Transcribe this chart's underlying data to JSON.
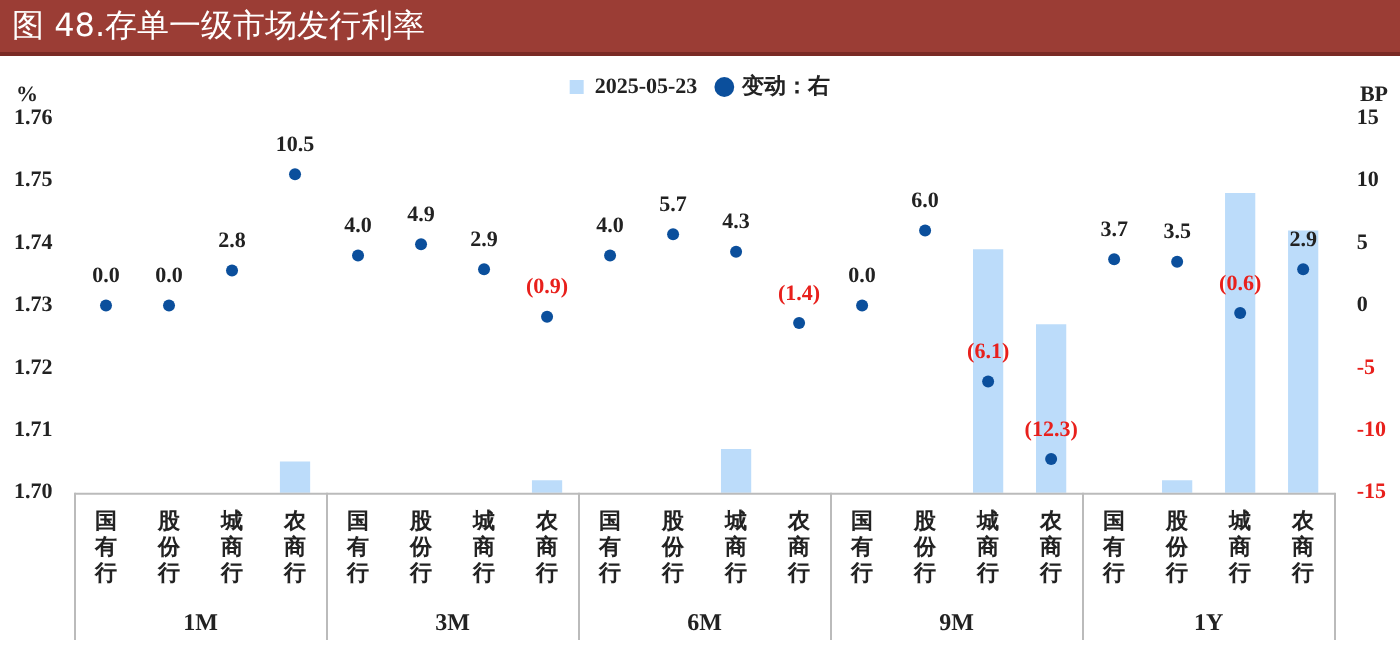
{
  "chart_data": {
    "type": "bar",
    "title": "图 48.存单一级市场发行利率",
    "categories": [
      "国有行",
      "股份行",
      "城商行",
      "农商行",
      "国有行",
      "股份行",
      "城商行",
      "农商行",
      "国有行",
      "股份行",
      "城商行",
      "农商行",
      "国有行",
      "股份行",
      "城商行",
      "农商行",
      "国有行",
      "股份行",
      "城商行",
      "农商行"
    ],
    "series": [
      {
        "name": "2025-05-23",
        "color": "#bcdcfa",
        "values": [
          null,
          null,
          null,
          1.705,
          null,
          null,
          null,
          1.702,
          null,
          null,
          1.707,
          null,
          null,
          null,
          1.739,
          1.727,
          null,
          1.702,
          1.748,
          1.742
        ]
      },
      {
        "name": "变动：右",
        "type": "scatter",
        "axis": "y2",
        "color": "#0b4f9c",
        "values": [
          0.0,
          0.0,
          2.8,
          10.5,
          4.0,
          4.9,
          2.9,
          -0.9,
          4.0,
          5.7,
          4.3,
          -1.4,
          0.0,
          6.0,
          -6.1,
          -12.3,
          3.7,
          3.5,
          -0.6,
          2.9
        ],
        "value_labels": [
          "0.0",
          "0.0",
          "2.8",
          "10.5",
          "4.0",
          "4.9",
          "2.9",
          "(0.9)",
          "4.0",
          "5.7",
          "4.3",
          "(1.4)",
          "0.0",
          "6.0",
          "(6.1)",
          "(12.3)",
          "3.7",
          "3.5",
          "(0.6)",
          "2.9"
        ]
      }
    ],
    "ylabel": "%",
    "y2label": "BP",
    "ylim": [
      1.7,
      1.76
    ],
    "yticks": [
      {
        "value": 1.7,
        "label": "1.70"
      },
      1.71,
      1.72,
      1.73,
      1.74,
      1.75,
      1.76
    ],
    "y2lim": [
      -15,
      15
    ],
    "y2ticks": [
      -15,
      -10,
      -5,
      0,
      5,
      10,
      15
    ],
    "annotations": [
      "1M",
      "3M",
      "6M",
      "9M",
      "1Y"
    ],
    "legend": "top",
    "marker": "circle",
    "grid": false
  }
}
